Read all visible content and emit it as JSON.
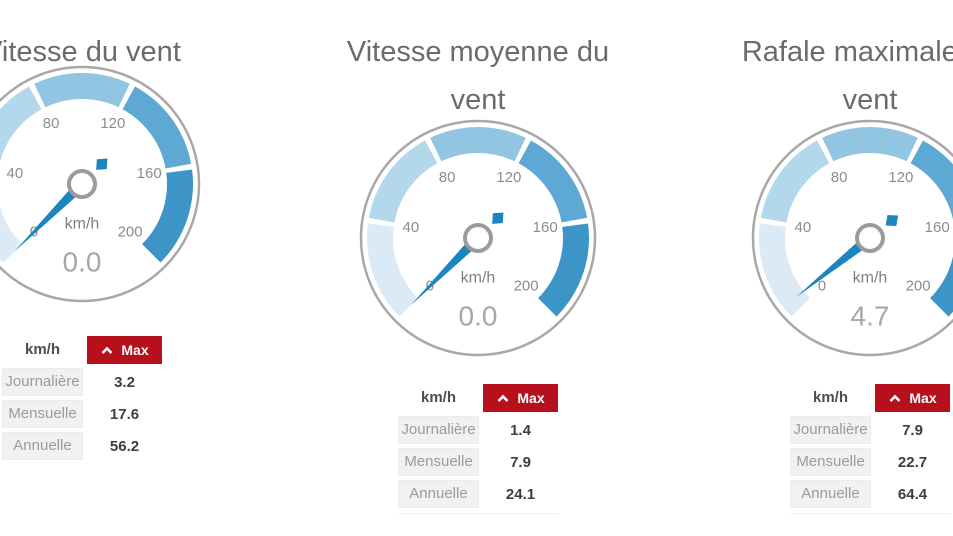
{
  "colors": {
    "zone_colors": [
      "#dbeaf4",
      "#b3d7eb",
      "#92c5e2",
      "#5ea9d4",
      "#3c95c6"
    ],
    "needle": "#1b86be",
    "gauge_ring": "#a8a8a8",
    "hub_ring": "#9b9b9b",
    "tick_text": "#8c8c8c",
    "unit_text": "#7f7f7f",
    "value_text": "#a6a6a6",
    "title_text": "#6b6b6b",
    "max_button_bg": "#b5101c",
    "max_button_text": "#ffffff",
    "row_label_bg": "#f1f1f1",
    "row_label_text": "#9b9b9b",
    "row_value_text": "#3d3d3d"
  },
  "chart_data": [
    {
      "type": "gauge",
      "title": "Vitesse du vent",
      "title_lines": [
        "Vitesse du vent"
      ],
      "unit": "km/h",
      "value": 0.0,
      "value_display": "0.0",
      "min": 0,
      "max": 200,
      "ticks": [
        0,
        40,
        80,
        120,
        160,
        200
      ],
      "zone_bounds": [
        0,
        40,
        80,
        120,
        160,
        200
      ],
      "table": {
        "unit_header": "km/h",
        "button_label": "Max",
        "rows": [
          {
            "label": "Journalière",
            "value": "3.2"
          },
          {
            "label": "Mensuelle",
            "value": "17.6"
          },
          {
            "label": "Annuelle",
            "value": "56.2"
          }
        ]
      }
    },
    {
      "type": "gauge",
      "title": "Vitesse moyenne du vent",
      "title_lines": [
        "Vitesse moyenne du",
        "vent"
      ],
      "unit": "km/h",
      "value": 0.0,
      "value_display": "0.0",
      "min": 0,
      "max": 200,
      "ticks": [
        0,
        40,
        80,
        120,
        160,
        200
      ],
      "zone_bounds": [
        0,
        40,
        80,
        120,
        160,
        200
      ],
      "table": {
        "unit_header": "km/h",
        "button_label": "Max",
        "rows": [
          {
            "label": "Journalière",
            "value": "1.4"
          },
          {
            "label": "Mensuelle",
            "value": "7.9"
          },
          {
            "label": "Annuelle",
            "value": "24.1"
          }
        ]
      }
    },
    {
      "type": "gauge",
      "title": "Rafale maximale du vent",
      "title_lines": [
        "Rafale maximale du",
        "vent"
      ],
      "unit": "km/h",
      "value": 4.7,
      "value_display": "4.7",
      "min": 0,
      "max": 200,
      "ticks": [
        0,
        40,
        80,
        120,
        160,
        200
      ],
      "zone_bounds": [
        0,
        40,
        80,
        120,
        160,
        200
      ],
      "table": {
        "unit_header": "km/h",
        "button_label": "Max",
        "rows": [
          {
            "label": "Journalière",
            "value": "7.9"
          },
          {
            "label": "Mensuelle",
            "value": "22.7"
          },
          {
            "label": "Annuelle",
            "value": "64.4"
          }
        ]
      }
    }
  ]
}
